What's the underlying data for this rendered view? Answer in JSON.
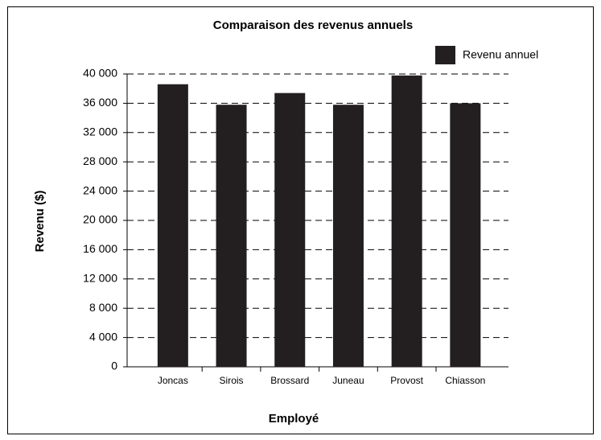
{
  "chart_data": {
    "type": "bar",
    "title": "Comparaison des revenus annuels",
    "x_label": "Employé",
    "y_label": "Revenu ($)",
    "categories": [
      "Joncas",
      "Sirois",
      "Brossard",
      "Juneau",
      "Provost",
      "Chiasson"
    ],
    "series": [
      {
        "name": "Revenu annuel",
        "color": "#231f20",
        "values": [
          38600,
          35800,
          37400,
          35800,
          39800,
          36000
        ]
      }
    ],
    "ylim": [
      0,
      40000
    ],
    "yticks": [
      0,
      {
        "value": 4000,
        "label": "4 000"
      },
      {
        "value": 8000,
        "label": "8 000"
      },
      {
        "value": 12000,
        "label": "12 000"
      },
      {
        "value": 16000,
        "label": "16 000"
      },
      {
        "value": 20000,
        "label": "20 000"
      },
      {
        "value": 24000,
        "label": "24 000"
      },
      {
        "value": 28000,
        "label": "28 000"
      },
      {
        "value": 32000,
        "label": "32 000"
      },
      {
        "value": 36000,
        "label": "36 000"
      },
      {
        "value": 40000,
        "label": "40 000"
      }
    ],
    "grid": true,
    "legend": "top-right"
  }
}
